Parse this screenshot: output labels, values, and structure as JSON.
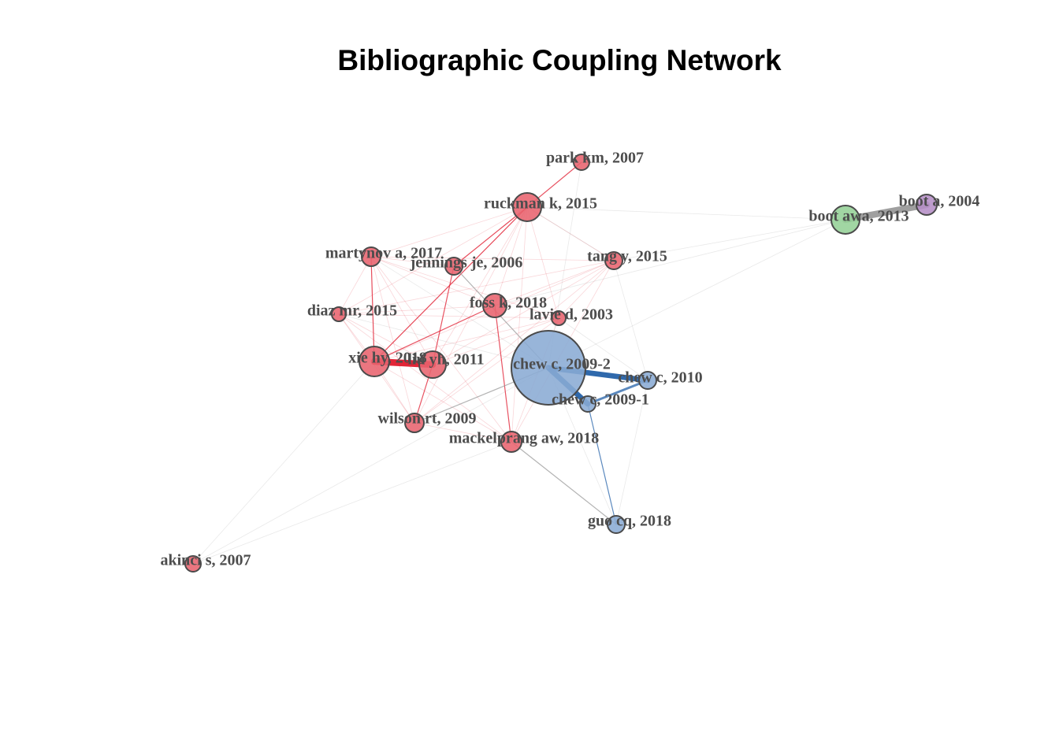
{
  "title": "Bibliographic Coupling Network",
  "colors": {
    "cluster_red": "#e8636e",
    "cluster_blue": "#8aabd4",
    "cluster_green": "#94d096",
    "cluster_purple": "#b58ec6",
    "edge_red": "#e01a2d",
    "edge_blue": "#2461a8",
    "edge_gray": "#9a9a9a",
    "label": "#4d4d4d"
  },
  "nodes": [
    {
      "id": "park",
      "label": "park km, 2007",
      "cluster": "red"
    },
    {
      "id": "ruckman",
      "label": "ruckman k, 2015",
      "cluster": "red"
    },
    {
      "id": "bootawa",
      "label": "boot awa, 2013",
      "cluster": "green"
    },
    {
      "id": "boota",
      "label": "boot a, 2004",
      "cluster": "purple"
    },
    {
      "id": "martynov",
      "label": "martynov a, 2017",
      "cluster": "red"
    },
    {
      "id": "jennings",
      "label": "jennings je, 2006",
      "cluster": "red"
    },
    {
      "id": "tang",
      "label": "tang y, 2015",
      "cluster": "red"
    },
    {
      "id": "diaz",
      "label": "diaz mr, 2015",
      "cluster": "red"
    },
    {
      "id": "foss",
      "label": "foss k, 2018",
      "cluster": "red"
    },
    {
      "id": "lavie",
      "label": "lavie d, 2003",
      "cluster": "red"
    },
    {
      "id": "xie",
      "label": "xie hy, 2018",
      "cluster": "red"
    },
    {
      "id": "liu",
      "label": "liu yh, 2011",
      "cluster": "red"
    },
    {
      "id": "chew2",
      "label": "chew c, 2009-2",
      "cluster": "blue"
    },
    {
      "id": "chew2010",
      "label": "chew c, 2010",
      "cluster": "blue"
    },
    {
      "id": "chew1",
      "label": "chew c, 2009-1",
      "cluster": "blue"
    },
    {
      "id": "wilson",
      "label": "wilson rt, 2009",
      "cluster": "red"
    },
    {
      "id": "mackelprang",
      "label": "mackelprang aw, 2018",
      "cluster": "red"
    },
    {
      "id": "guo",
      "label": "guo cq, 2018",
      "cluster": "blue"
    },
    {
      "id": "akinci",
      "label": "akinci s, 2007",
      "cluster": "red"
    }
  ],
  "edges": [
    {
      "source": "xie",
      "target": "liu",
      "weight": 5,
      "color": "red"
    },
    {
      "source": "chew2",
      "target": "chew2010",
      "weight": 4,
      "color": "blue"
    },
    {
      "source": "chew2",
      "target": "chew1",
      "weight": 4,
      "color": "blue"
    },
    {
      "source": "chew1",
      "target": "chew2010",
      "weight": 2,
      "color": "blue"
    },
    {
      "source": "chew1",
      "target": "guo",
      "weight": 1,
      "color": "blue"
    },
    {
      "source": "bootawa",
      "target": "boota",
      "weight": 5,
      "color": "gray"
    },
    {
      "source": "park",
      "target": "ruckman",
      "weight": 1,
      "color": "red"
    },
    {
      "source": "ruckman",
      "target": "jennings",
      "weight": 1,
      "color": "red"
    },
    {
      "source": "ruckman",
      "target": "xie",
      "weight": 1,
      "color": "red"
    },
    {
      "source": "jennings",
      "target": "liu",
      "weight": 1,
      "color": "red"
    },
    {
      "source": "foss",
      "target": "xie",
      "weight": 1,
      "color": "red"
    },
    {
      "source": "foss",
      "target": "mackelprang",
      "weight": 1,
      "color": "red"
    },
    {
      "source": "martynov",
      "target": "xie",
      "weight": 1,
      "color": "red"
    },
    {
      "source": "wilson",
      "target": "liu",
      "weight": 1,
      "color": "red"
    },
    {
      "source": "jennings",
      "target": "chew2",
      "weight": 1,
      "color": "gray"
    },
    {
      "source": "mackelprang",
      "target": "guo",
      "weight": 1,
      "color": "gray"
    },
    {
      "source": "wilson",
      "target": "chew2",
      "weight": 1,
      "color": "gray"
    }
  ]
}
